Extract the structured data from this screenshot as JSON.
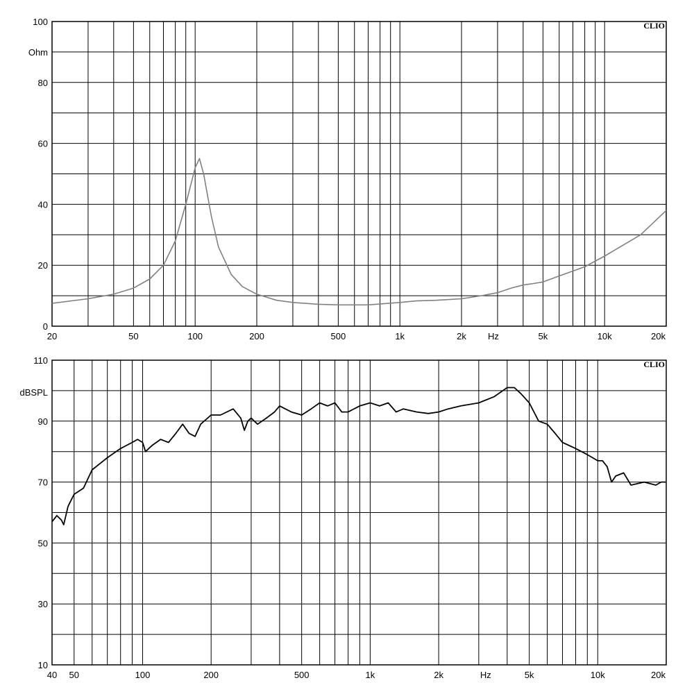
{
  "chart_data": [
    {
      "type": "line",
      "title": "",
      "brand": "CLIO",
      "ylabel": "Ohm",
      "xlabel": "Hz",
      "x_scale": "log",
      "xlim": [
        20,
        20000
      ],
      "ylim": [
        0,
        100
      ],
      "grid": true,
      "y_ticks": [
        {
          "value": 100,
          "label": "100"
        },
        {
          "value": 80,
          "label": "80"
        },
        {
          "value": 60,
          "label": "60"
        },
        {
          "value": 40,
          "label": "40"
        },
        {
          "value": 20,
          "label": "20"
        },
        {
          "value": 0,
          "label": "0"
        }
      ],
      "x_ticks": [
        {
          "value": 20,
          "label": "20"
        },
        {
          "value": 50,
          "label": "50"
        },
        {
          "value": 100,
          "label": "100"
        },
        {
          "value": 200,
          "label": "200"
        },
        {
          "value": 500,
          "label": "500"
        },
        {
          "value": 1000,
          "label": "1k"
        },
        {
          "value": 2000,
          "label": "2k"
        },
        {
          "value": 5000,
          "label": "5k"
        },
        {
          "value": 10000,
          "label": "10k"
        },
        {
          "value": 20000,
          "label": "20k"
        }
      ],
      "series": [
        {
          "color": "#808080",
          "x": [
            20,
            30,
            40,
            50,
            60,
            70,
            80,
            90,
            100,
            105,
            110,
            120,
            130,
            150,
            170,
            200,
            250,
            300,
            400,
            500,
            700,
            1000,
            1200,
            1500,
            2000,
            2500,
            3000,
            3500,
            4000,
            4500,
            5000,
            6000,
            8000,
            10000,
            15000,
            20000
          ],
          "y": [
            7.5,
            9,
            10.5,
            12.5,
            15.5,
            20,
            28,
            40,
            52,
            55,
            50,
            36,
            26,
            17,
            13,
            10.5,
            8.5,
            7.8,
            7.2,
            7,
            7,
            7.8,
            8.3,
            8.5,
            9,
            10,
            11,
            12.5,
            13.5,
            14,
            14.5,
            16.5,
            19.5,
            23,
            30,
            38
          ]
        }
      ]
    },
    {
      "type": "line",
      "title": "",
      "brand": "CLIO",
      "ylabel": "dBSPL",
      "xlabel": "Hz",
      "x_scale": "log",
      "xlim": [
        40,
        20000
      ],
      "ylim": [
        10,
        110
      ],
      "grid": true,
      "y_ticks": [
        {
          "value": 110,
          "label": "110"
        },
        {
          "value": 90,
          "label": "90"
        },
        {
          "value": 70,
          "label": "70"
        },
        {
          "value": 50,
          "label": "50"
        },
        {
          "value": 30,
          "label": "30"
        },
        {
          "value": 10,
          "label": "10"
        }
      ],
      "x_ticks": [
        {
          "value": 40,
          "label": "40"
        },
        {
          "value": 50,
          "label": "50"
        },
        {
          "value": 100,
          "label": "100"
        },
        {
          "value": 200,
          "label": "200"
        },
        {
          "value": 500,
          "label": "500"
        },
        {
          "value": 1000,
          "label": "1k"
        },
        {
          "value": 2000,
          "label": "2k"
        },
        {
          "value": 5000,
          "label": "5k"
        },
        {
          "value": 10000,
          "label": "10k"
        },
        {
          "value": 20000,
          "label": "20k"
        }
      ],
      "series": [
        {
          "color": "#000000",
          "x": [
            40,
            42,
            44,
            45,
            47,
            50,
            55,
            60,
            70,
            80,
            90,
            95,
            100,
            103,
            110,
            120,
            130,
            140,
            150,
            160,
            170,
            180,
            200,
            220,
            250,
            270,
            280,
            290,
            300,
            320,
            350,
            380,
            400,
            450,
            500,
            550,
            600,
            650,
            700,
            750,
            800,
            900,
            1000,
            1100,
            1200,
            1300,
            1400,
            1600,
            1800,
            2000,
            2200,
            2500,
            3000,
            3500,
            4000,
            4300,
            4600,
            5000,
            5500,
            6000,
            6500,
            7000,
            8000,
            9000,
            10000,
            10500,
            11000,
            11500,
            12000,
            13000,
            14000,
            16000,
            18000,
            19000,
            20000
          ],
          "y": [
            57,
            59,
            57.5,
            56,
            62,
            66,
            68,
            74,
            78,
            81,
            83,
            84,
            83,
            80,
            82,
            84,
            83,
            86,
            89,
            86,
            85,
            89,
            92,
            92,
            94,
            91,
            87,
            90,
            91,
            89,
            91,
            93,
            95,
            93,
            92,
            94,
            96,
            95,
            96,
            93,
            93,
            95,
            96,
            95,
            96,
            93,
            94,
            93,
            92.5,
            93,
            94,
            95,
            96,
            98,
            101,
            101,
            99,
            96,
            90,
            89,
            86,
            83,
            81,
            79,
            77,
            77,
            75,
            70,
            72,
            73,
            69,
            70,
            69,
            70,
            70
          ]
        }
      ]
    }
  ]
}
